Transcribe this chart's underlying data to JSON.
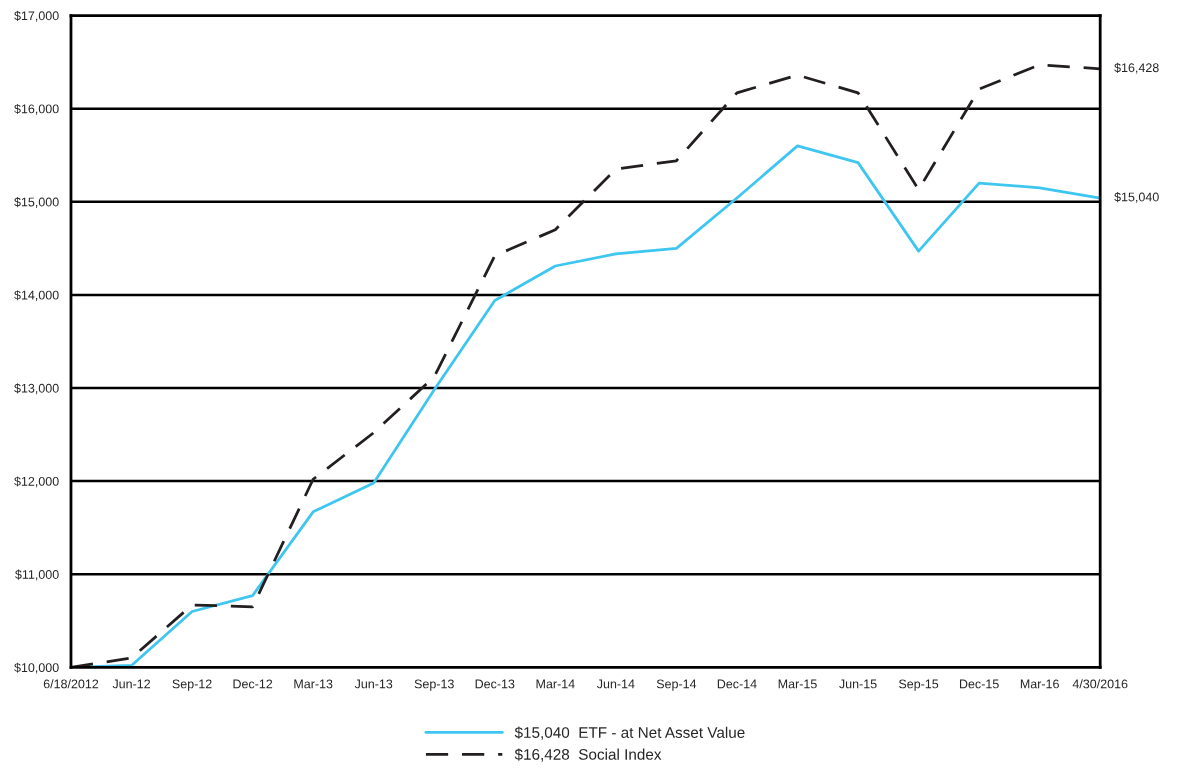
{
  "chart_data": {
    "type": "line",
    "categories": [
      "6/18/2012",
      "Jun-12",
      "Sep-12",
      "Dec-12",
      "Mar-13",
      "Jun-13",
      "Sep-13",
      "Dec-13",
      "Mar-14",
      "Jun-14",
      "Sep-14",
      "Dec-14",
      "Mar-15",
      "Jun-15",
      "Sep-15",
      "Dec-15",
      "Mar-16",
      "4/30/2016"
    ],
    "series": [
      {
        "name": "$15,040  ETF - at Net Asset Value",
        "color": "#3ec6f0",
        "line_style": "solid",
        "values": [
          10000,
          10020,
          10600,
          10770,
          11670,
          11980,
          12980,
          13940,
          14310,
          14440,
          14500,
          15040,
          15600,
          15420,
          14470,
          15200,
          15150,
          15040
        ]
      },
      {
        "name": "$16,428  Social Index",
        "color": "#231f20",
        "line_style": "dashed",
        "values": [
          10000,
          10100,
          10670,
          10650,
          12020,
          12520,
          13120,
          14420,
          14700,
          15350,
          15440,
          16170,
          16360,
          16170,
          15130,
          16210,
          16470,
          16428
        ]
      }
    ],
    "ylim": [
      10000,
      17000
    ],
    "yticks": [
      {
        "value": 10000,
        "label": "$10,000"
      },
      {
        "value": 11000,
        "label": "$11,000"
      },
      {
        "value": 12000,
        "label": "$12,000"
      },
      {
        "value": 13000,
        "label": "$13,000"
      },
      {
        "value": 14000,
        "label": "$14,000"
      },
      {
        "value": 15000,
        "label": "$15,000"
      },
      {
        "value": 16000,
        "label": "$16,000"
      },
      {
        "value": 17000,
        "label": "$17,000"
      }
    ],
    "annotations": [
      {
        "text": "$16,428",
        "x": "4/30/2016",
        "y": 16428
      },
      {
        "text": "$15,040",
        "x": "4/30/2016",
        "y": 15040
      }
    ],
    "grid": "y",
    "legend": "bottom",
    "marker": "none"
  }
}
